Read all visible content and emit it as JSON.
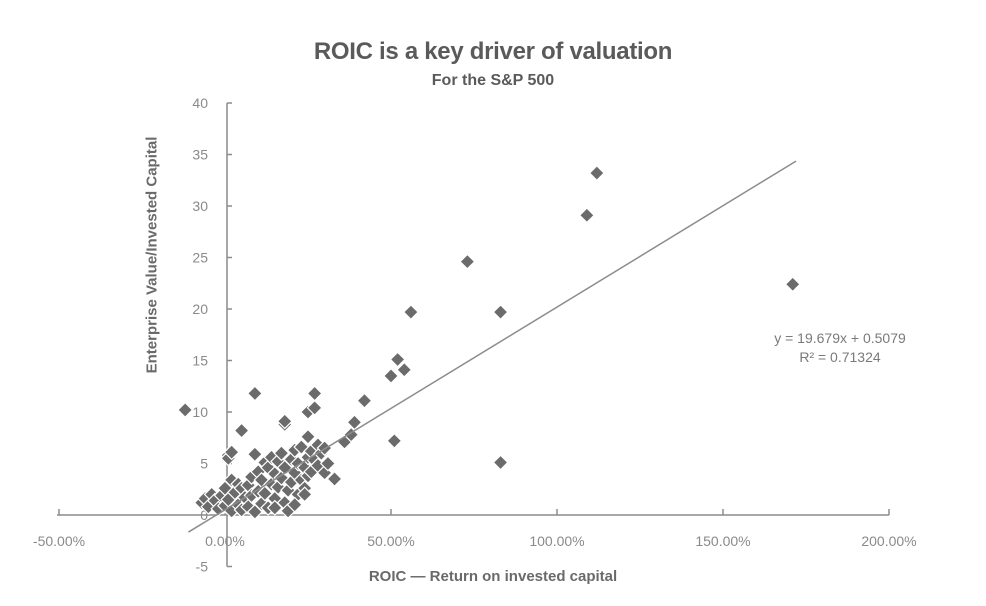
{
  "chart_data": {
    "type": "scatter",
    "title": "ROIC is a key driver of valuation",
    "subtitle": "For the S&P 500",
    "xlabel": "ROIC — Return on invested capital",
    "ylabel": "Enterprise Value/Invested Capital",
    "xlim": [
      -0.5,
      2.0
    ],
    "ylim": [
      -5,
      40
    ],
    "x_ticks": [
      -0.5,
      0,
      0.5,
      1.0,
      1.5,
      2.0
    ],
    "x_tick_labels": [
      "-50.00%",
      "0.00%",
      "50.00%",
      "100.00%",
      "150.00%",
      "200.00%"
    ],
    "y_ticks": [
      -5,
      0,
      5,
      10,
      15,
      20,
      25,
      30,
      35,
      40
    ],
    "y_tick_labels": [
      "-5",
      "0",
      "5",
      "10",
      "15",
      "20",
      "25",
      "30",
      "35",
      "40"
    ],
    "grid": false,
    "legend": null,
    "marker": "diamond",
    "marker_color": "#6b6b6b",
    "trendline": {
      "type": "linear",
      "slope": 19.679,
      "intercept": 0.5079,
      "r_squared": 0.71324,
      "x_range": [
        -0.11,
        1.72
      ],
      "color": "#8c8c8c"
    },
    "annotations": [
      "y = 19.679x + 0.5079",
      "R² = 0.71324"
    ],
    "points": [
      [
        -0.12,
        10.2
      ],
      [
        0.05,
        8.2
      ],
      [
        0.09,
        11.8
      ],
      [
        0.18,
        8.8
      ],
      [
        0.18,
        9.1
      ],
      [
        0.25,
        10.0
      ],
      [
        0.27,
        11.8
      ],
      [
        0.27,
        10.4
      ],
      [
        0.36,
        7.1
      ],
      [
        0.38,
        7.8
      ],
      [
        0.39,
        9.0
      ],
      [
        0.42,
        11.1
      ],
      [
        0.33,
        3.5
      ],
      [
        0.5,
        13.5
      ],
      [
        0.52,
        15.1
      ],
      [
        0.54,
        14.1
      ],
      [
        0.56,
        19.7
      ],
      [
        0.51,
        7.2
      ],
      [
        0.73,
        24.6
      ],
      [
        0.83,
        19.7
      ],
      [
        0.83,
        5.1
      ],
      [
        1.09,
        29.1
      ],
      [
        1.12,
        33.2
      ],
      [
        1.71,
        22.4
      ],
      [
        0.01,
        5.8
      ],
      [
        0.01,
        5.5
      ],
      [
        0.02,
        6.1
      ],
      [
        -0.07,
        1.2
      ],
      [
        -0.06,
        1.6
      ],
      [
        -0.05,
        0.8
      ],
      [
        -0.04,
        2.0
      ],
      [
        -0.03,
        1.4
      ],
      [
        -0.02,
        0.6
      ],
      [
        -0.01,
        1.9
      ],
      [
        0.0,
        0.9
      ],
      [
        0.0,
        2.6
      ],
      [
        0.01,
        1.5
      ],
      [
        0.02,
        3.4
      ],
      [
        0.02,
        0.4
      ],
      [
        0.03,
        2.2
      ],
      [
        0.04,
        1.0
      ],
      [
        0.04,
        3.0
      ],
      [
        0.05,
        2.6
      ],
      [
        0.05,
        0.5
      ],
      [
        0.06,
        1.7
      ],
      [
        0.07,
        2.9
      ],
      [
        0.07,
        0.8
      ],
      [
        0.08,
        3.7
      ],
      [
        0.08,
        1.9
      ],
      [
        0.09,
        5.9
      ],
      [
        0.09,
        0.3
      ],
      [
        0.1,
        2.3
      ],
      [
        0.1,
        4.2
      ],
      [
        0.11,
        1.1
      ],
      [
        0.11,
        3.4
      ],
      [
        0.12,
        5.1
      ],
      [
        0.12,
        2.1
      ],
      [
        0.13,
        0.7
      ],
      [
        0.13,
        4.6
      ],
      [
        0.14,
        5.6
      ],
      [
        0.14,
        3.0
      ],
      [
        0.15,
        1.6
      ],
      [
        0.15,
        4.0
      ],
      [
        0.16,
        2.7
      ],
      [
        0.16,
        5.2
      ],
      [
        0.17,
        6.0
      ],
      [
        0.17,
        3.6
      ],
      [
        0.18,
        1.2
      ],
      [
        0.18,
        4.6
      ],
      [
        0.19,
        2.4
      ],
      [
        0.19,
        0.4
      ],
      [
        0.2,
        5.4
      ],
      [
        0.2,
        3.2
      ],
      [
        0.21,
        4.1
      ],
      [
        0.21,
        6.3
      ],
      [
        0.22,
        2.0
      ],
      [
        0.22,
        5.0
      ],
      [
        0.23,
        3.4
      ],
      [
        0.23,
        6.6
      ],
      [
        0.24,
        4.6
      ],
      [
        0.24,
        2.6
      ],
      [
        0.25,
        7.6
      ],
      [
        0.25,
        5.6
      ],
      [
        0.25,
        3.8
      ],
      [
        0.26,
        6.2
      ],
      [
        0.26,
        4.2
      ],
      [
        0.27,
        5.3
      ],
      [
        0.28,
        6.8
      ],
      [
        0.28,
        4.8
      ],
      [
        0.29,
        6.0
      ],
      [
        0.3,
        6.5
      ],
      [
        0.3,
        4.1
      ],
      [
        0.31,
        5.0
      ],
      [
        0.24,
        2.0
      ],
      [
        0.21,
        1.0
      ],
      [
        0.15,
        0.7
      ]
    ]
  }
}
